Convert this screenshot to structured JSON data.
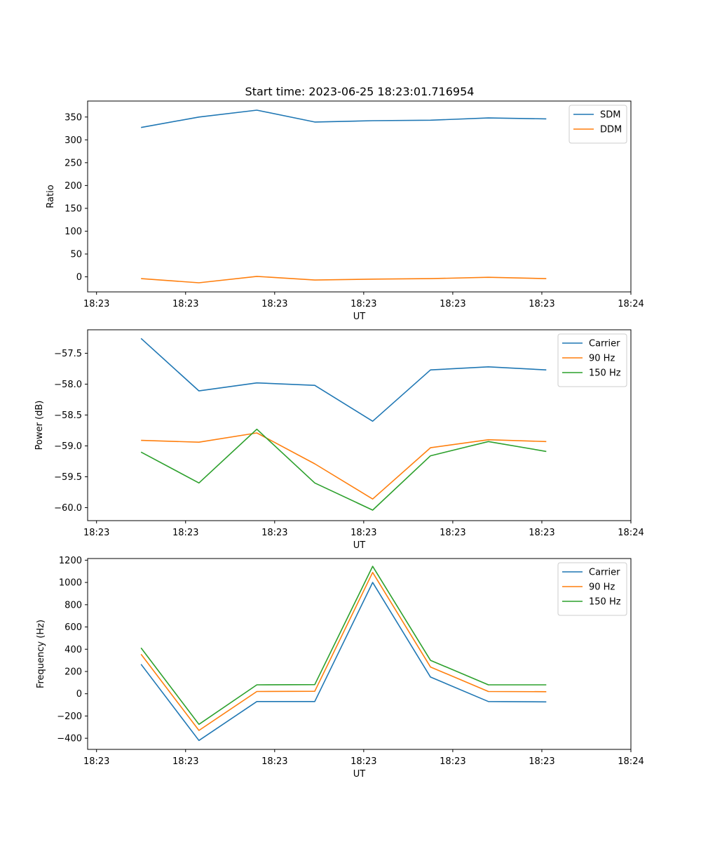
{
  "title": "Start time: 2023-06-25 18:23:01.716954",
  "chart_data": [
    {
      "type": "line",
      "xlabel": "UT",
      "ylabel": "Ratio",
      "x_tick_labels": [
        "18:23",
        "18:23",
        "18:23",
        "18:23",
        "18:23",
        "18:23",
        "18:24"
      ],
      "x_points": [
        0.5,
        1.15,
        1.8,
        2.45,
        3.1,
        3.75,
        4.4,
        5.05
      ],
      "xlim": [
        -0.1,
        6.0
      ],
      "y_ticks": [
        0,
        50,
        100,
        150,
        200,
        250,
        300,
        350
      ],
      "ylim": [
        -33,
        385
      ],
      "legend": "top-right",
      "series": [
        {
          "name": "SDM",
          "color": "#1f77b4",
          "values": [
            327,
            350,
            365,
            339,
            342,
            343,
            348,
            346
          ]
        },
        {
          "name": "DDM",
          "color": "#ff7f0e",
          "values": [
            -4,
            -13,
            1,
            -7,
            -5,
            -4,
            -1,
            -4
          ]
        }
      ]
    },
    {
      "type": "line",
      "xlabel": "UT",
      "ylabel": "Power (dB)",
      "x_tick_labels": [
        "18:23",
        "18:23",
        "18:23",
        "18:23",
        "18:23",
        "18:23",
        "18:24"
      ],
      "x_points": [
        0.5,
        1.15,
        1.8,
        2.45,
        3.1,
        3.75,
        4.4,
        5.05
      ],
      "xlim": [
        -0.1,
        6.0
      ],
      "y_ticks": [
        -60.0,
        -59.5,
        -59.0,
        -58.5,
        -58.0,
        -57.5
      ],
      "y_tick_labels": [
        "−60.0",
        "−59.5",
        "−59.0",
        "−58.5",
        "−58.0",
        "−57.5"
      ],
      "ylim": [
        -60.21,
        -57.12
      ],
      "legend": "top-right",
      "series": [
        {
          "name": "Carrier",
          "color": "#1f77b4",
          "values": [
            -57.26,
            -58.11,
            -57.98,
            -58.02,
            -58.6,
            -57.77,
            -57.72,
            -57.77
          ]
        },
        {
          "name": "90 Hz",
          "color": "#ff7f0e",
          "values": [
            -58.91,
            -58.94,
            -58.79,
            -59.29,
            -59.86,
            -59.03,
            -58.9,
            -58.93
          ]
        },
        {
          "name": "150 Hz",
          "color": "#2ca02c",
          "values": [
            -59.1,
            -59.6,
            -58.73,
            -59.6,
            -60.04,
            -59.16,
            -58.93,
            -59.09
          ]
        }
      ]
    },
    {
      "type": "line",
      "xlabel": "UT",
      "ylabel": "Frequency (Hz)",
      "x_tick_labels": [
        "18:23",
        "18:23",
        "18:23",
        "18:23",
        "18:23",
        "18:23",
        "18:24"
      ],
      "x_points": [
        0.5,
        1.15,
        1.8,
        2.45,
        3.1,
        3.75,
        4.4,
        5.05
      ],
      "xlim": [
        -0.1,
        6.0
      ],
      "y_ticks": [
        -400,
        -200,
        0,
        200,
        400,
        600,
        800,
        1000,
        1200
      ],
      "y_tick_labels": [
        "−400",
        "−200",
        "0",
        "200",
        "400",
        "600",
        "800",
        "1000",
        "1200"
      ],
      "ylim": [
        -500,
        1215
      ],
      "legend": "top-right",
      "series": [
        {
          "name": "Carrier",
          "color": "#1f77b4",
          "values": [
            265,
            -420,
            -70,
            -70,
            1000,
            150,
            -70,
            -73
          ]
        },
        {
          "name": "90 Hz",
          "color": "#ff7f0e",
          "values": [
            355,
            -330,
            20,
            22,
            1090,
            240,
            20,
            18
          ]
        },
        {
          "name": "150 Hz",
          "color": "#2ca02c",
          "values": [
            412,
            -275,
            80,
            82,
            1145,
            300,
            80,
            80
          ]
        }
      ]
    }
  ]
}
